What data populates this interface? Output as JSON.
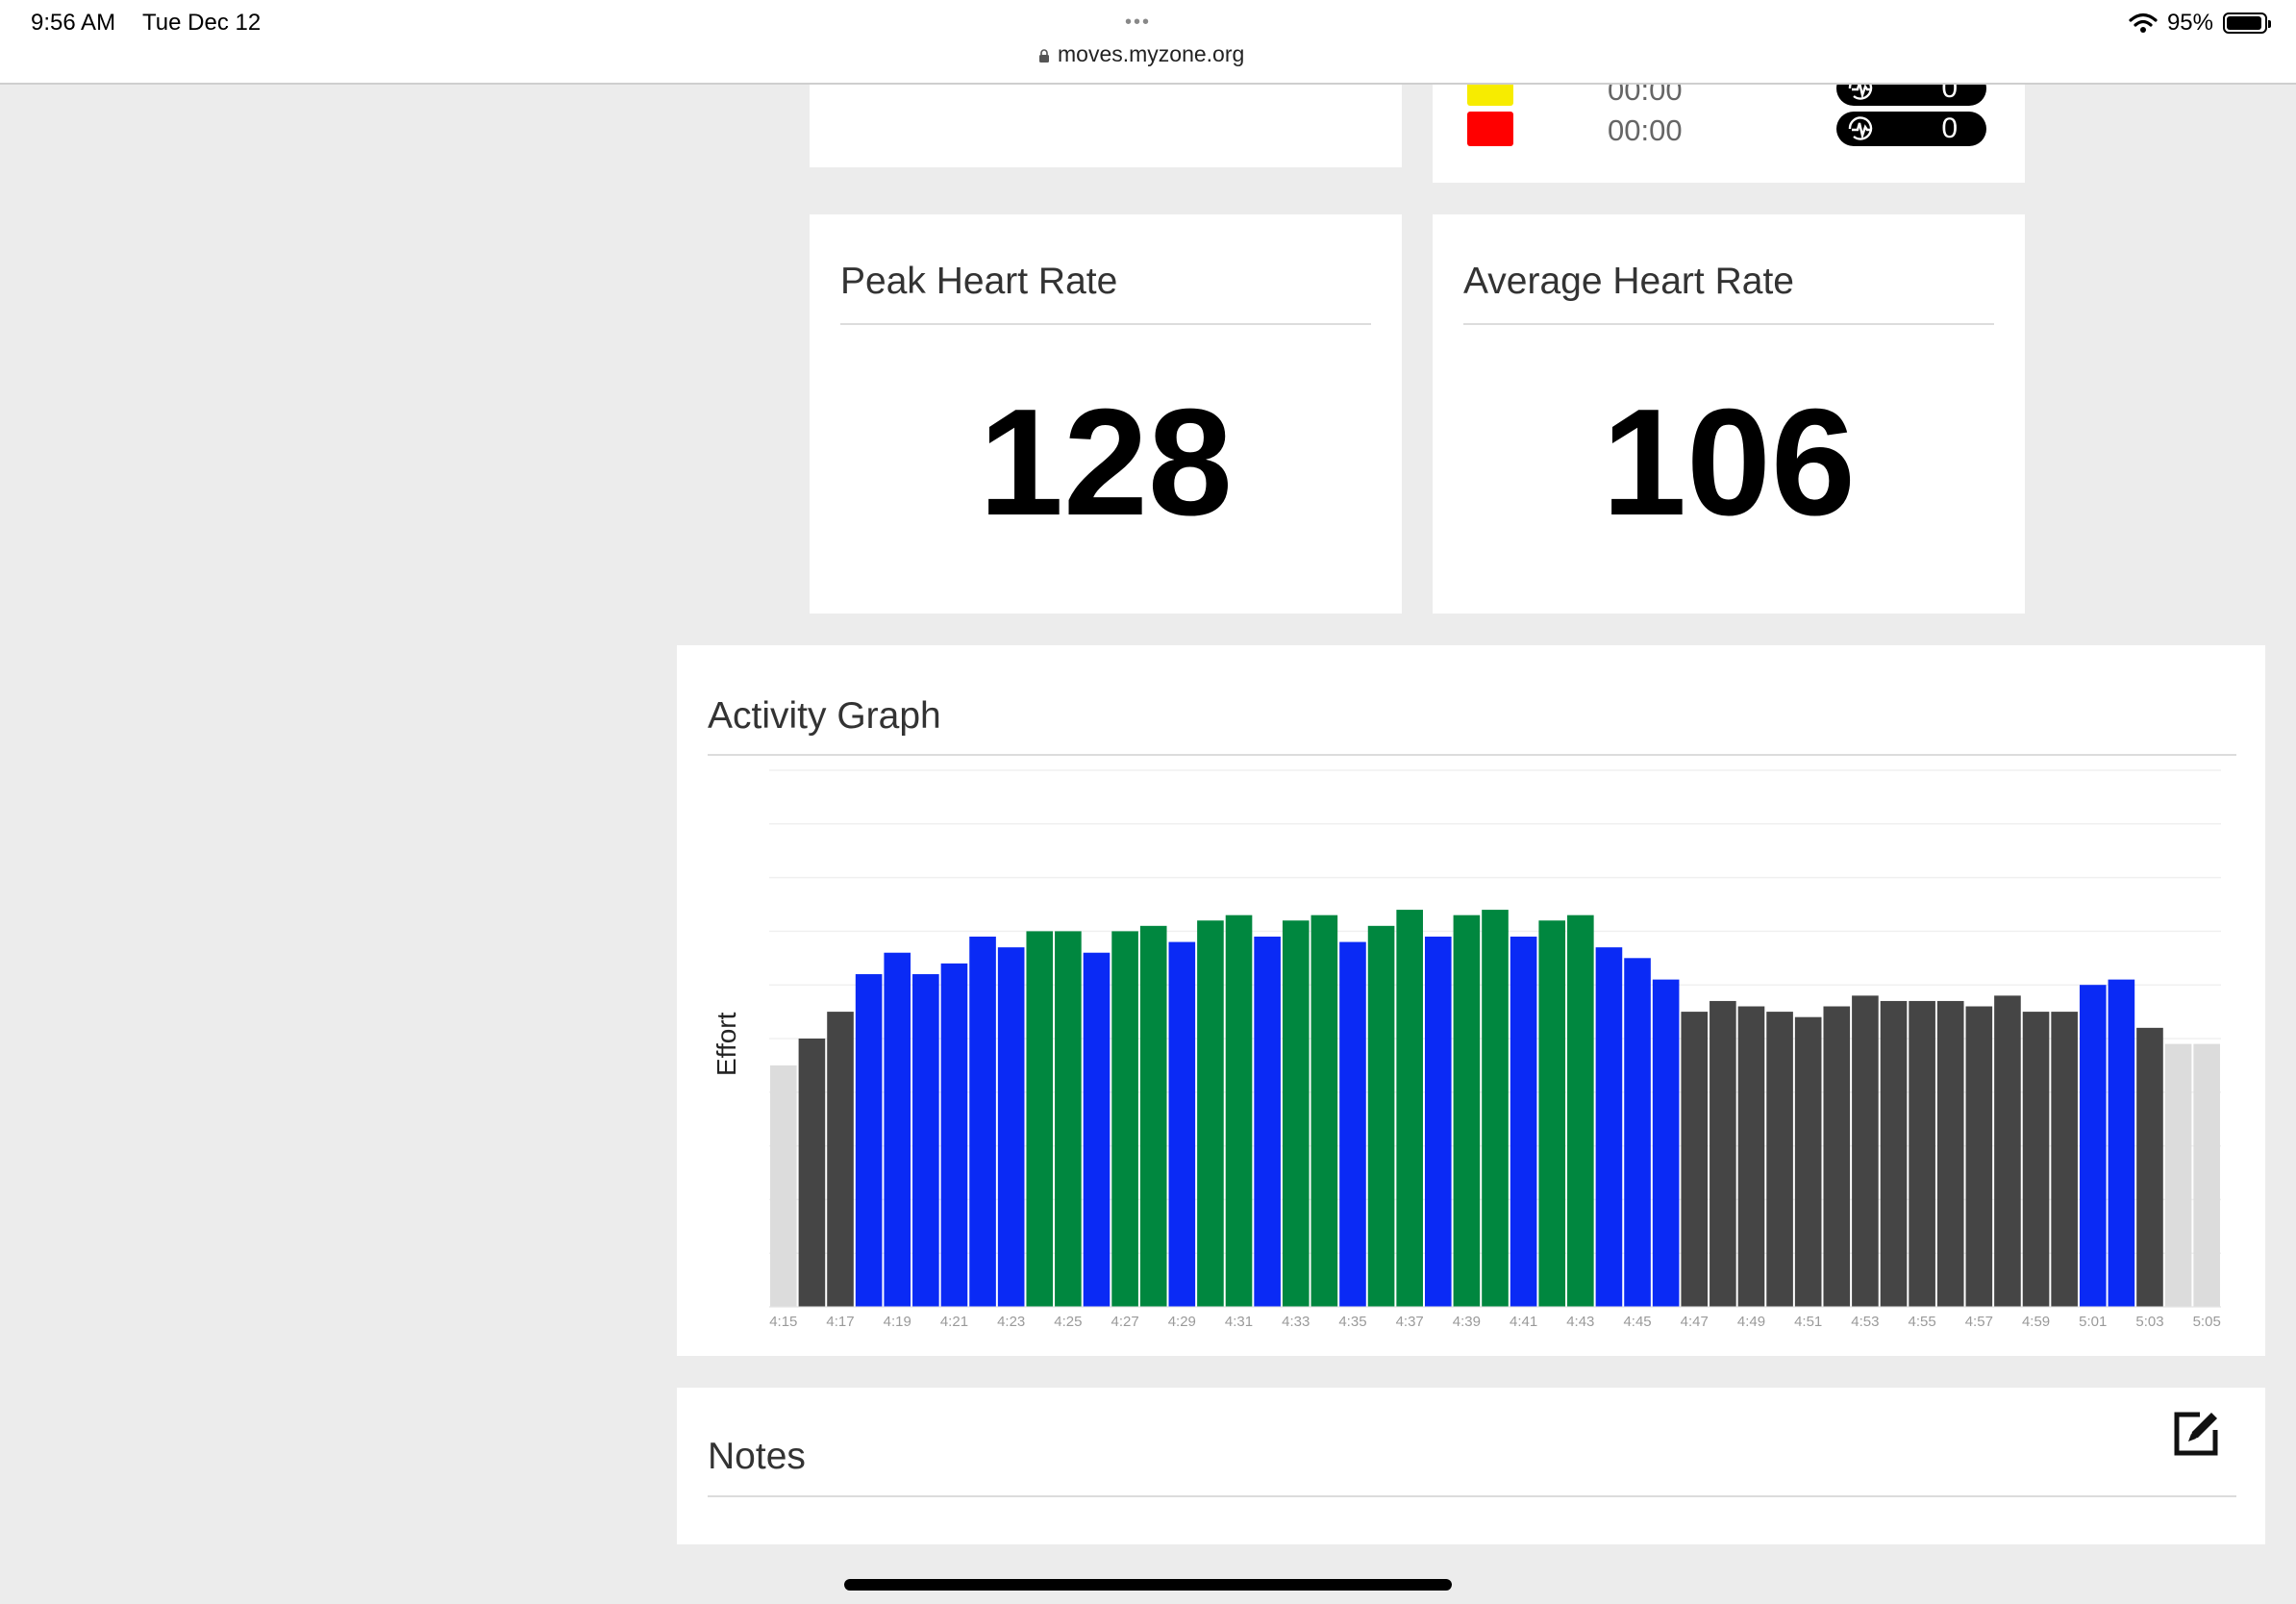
{
  "status_bar": {
    "time": "9:56 AM",
    "date": "Tue Dec 12",
    "dots": "•••",
    "url": "moves.myzone.org",
    "battery_percent_label": "95%",
    "battery_level": 0.95
  },
  "zones_card": {
    "rows": [
      {
        "color": "#f7ec00",
        "time": "00:00",
        "count": "0"
      },
      {
        "color": "#ff0000",
        "time": "00:00",
        "count": "0"
      }
    ]
  },
  "peak_card": {
    "title": "Peak Heart Rate",
    "value": "128"
  },
  "average_card": {
    "title": "Average Heart Rate",
    "value": "106"
  },
  "activity_card": {
    "title": "Activity Graph"
  },
  "notes_card": {
    "title": "Notes"
  },
  "colors": {
    "gray": "#454545",
    "blue": "#0a2af5",
    "green": "#00873f",
    "light": "#dcdcdc"
  },
  "chart_data": {
    "type": "bar",
    "ylabel": "Effort",
    "ylim": [
      0,
      100
    ],
    "grid": true,
    "tick_labels": [
      "4:15",
      "4:17",
      "4:19",
      "4:21",
      "4:23",
      "4:25",
      "4:27",
      "4:29",
      "4:31",
      "4:33",
      "4:35",
      "4:37",
      "4:39",
      "4:41",
      "4:43",
      "4:45",
      "4:47",
      "4:49",
      "4:51",
      "4:53",
      "4:55",
      "4:57",
      "4:59",
      "5:01",
      "5:03",
      "5:05"
    ],
    "categories": [
      "4:15",
      "4:16",
      "4:17",
      "4:18",
      "4:19",
      "4:20",
      "4:21",
      "4:22",
      "4:23",
      "4:24",
      "4:25",
      "4:26",
      "4:27",
      "4:28",
      "4:29",
      "4:30",
      "4:31",
      "4:32",
      "4:33",
      "4:34",
      "4:35",
      "4:36",
      "4:37",
      "4:38",
      "4:39",
      "4:40",
      "4:41",
      "4:42",
      "4:43",
      "4:44",
      "4:45",
      "4:46",
      "4:47",
      "4:48",
      "4:49",
      "4:50",
      "4:51",
      "4:52",
      "4:53",
      "4:54",
      "4:55",
      "4:56",
      "4:57",
      "4:58",
      "4:59",
      "5:00",
      "5:01",
      "5:02",
      "5:03",
      "5:04",
      "5:05"
    ],
    "values": [
      45,
      50,
      55,
      62,
      66,
      62,
      64,
      69,
      67,
      70,
      70,
      66,
      70,
      71,
      68,
      72,
      73,
      69,
      72,
      73,
      68,
      71,
      74,
      69,
      73,
      74,
      69,
      72,
      73,
      67,
      65,
      61,
      55,
      57,
      56,
      55,
      54,
      56,
      58,
      57,
      57,
      57,
      56,
      58,
      55,
      55,
      60,
      61,
      52,
      49,
      49
    ],
    "zones": [
      "light",
      "gray",
      "gray",
      "blue",
      "blue",
      "blue",
      "blue",
      "blue",
      "blue",
      "green",
      "green",
      "blue",
      "green",
      "green",
      "blue",
      "green",
      "green",
      "blue",
      "green",
      "green",
      "blue",
      "green",
      "green",
      "blue",
      "green",
      "green",
      "blue",
      "green",
      "green",
      "blue",
      "blue",
      "blue",
      "gray",
      "gray",
      "gray",
      "gray",
      "gray",
      "gray",
      "gray",
      "gray",
      "gray",
      "gray",
      "gray",
      "gray",
      "gray",
      "gray",
      "blue",
      "blue",
      "gray",
      "light",
      "light"
    ]
  }
}
